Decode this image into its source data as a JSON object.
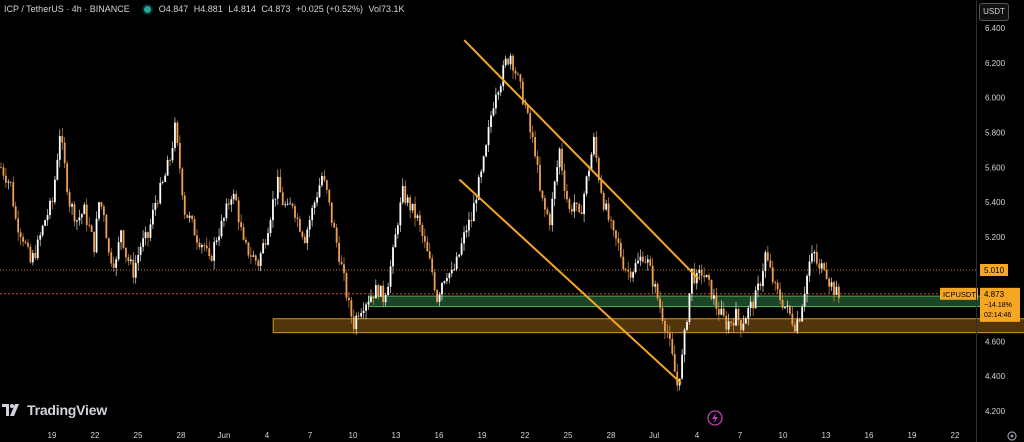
{
  "header": {
    "symbol": "ICP / TetherUS · 4h · BINANCE",
    "o_label": "O",
    "o": "4.847",
    "h_label": "H",
    "h": "4.881",
    "l_label": "L",
    "l": "4.814",
    "c_label": "C",
    "c": "4.873",
    "change": "+0.025 (+0.52%)",
    "vol_label": "Vol",
    "vol": "73.1K"
  },
  "currency": "USDT",
  "logo_text": "TradingView",
  "colors": {
    "background": "#000000",
    "candle_up": "#ffffff",
    "candle_down": "#f0a050",
    "trendline": "#f5a623",
    "support_zone": "#1e4d2b",
    "support_zone_border": "#4caf50",
    "demand_zone": "#5c3b0c",
    "demand_zone_border": "#d4952a",
    "price_line": "#f5a623"
  },
  "chart_data": {
    "type": "candlestick",
    "title": "ICP / TetherUS · 4h · BINANCE",
    "ylim": [
      4.1,
      6.5
    ],
    "y_ticks": [
      "6.400",
      "6.200",
      "6.000",
      "5.800",
      "5.600",
      "5.400",
      "5.200",
      "5.000",
      "4.800",
      "4.600",
      "4.400",
      "4.200"
    ],
    "x_ticks": [
      "19",
      "22",
      "25",
      "28",
      "Jun",
      "4",
      "7",
      "10",
      "13",
      "16",
      "19",
      "22",
      "25",
      "28",
      "Jul",
      "4",
      "7",
      "10",
      "13",
      "16",
      "19",
      "22"
    ],
    "price_labels": [
      {
        "label": "5.010",
        "value": 5.01
      },
      {
        "label": "ICPUSDT",
        "value": 4.873,
        "price": "4.873",
        "change": "−14.18%",
        "countdown": "02:14:46"
      }
    ],
    "series": [
      {
        "path": [
          [
            0,
            5.6
          ],
          [
            4,
            5.5
          ],
          [
            6,
            5.3
          ],
          [
            9,
            5.2
          ],
          [
            12,
            5.05
          ],
          [
            15,
            5.15
          ],
          [
            18,
            5.3
          ],
          [
            21,
            5.4
          ],
          [
            24,
            5.8
          ],
          [
            26,
            5.6
          ],
          [
            28,
            5.4
          ],
          [
            31,
            5.3
          ],
          [
            34,
            5.35
          ],
          [
            36,
            5.25
          ],
          [
            38,
            5.15
          ],
          [
            40,
            5.4
          ],
          [
            42,
            5.35
          ],
          [
            44,
            5.1
          ],
          [
            47,
            5.05
          ],
          [
            49,
            5.25
          ],
          [
            51,
            5.1
          ],
          [
            54,
            5.0
          ],
          [
            57,
            5.15
          ],
          [
            60,
            5.2
          ],
          [
            63,
            5.4
          ],
          [
            66,
            5.5
          ],
          [
            69,
            5.65
          ],
          [
            71,
            5.82
          ],
          [
            73,
            5.6
          ],
          [
            75,
            5.35
          ],
          [
            77,
            5.3
          ],
          [
            80,
            5.2
          ],
          [
            83,
            5.15
          ],
          [
            85,
            5.05
          ],
          [
            88,
            5.2
          ],
          [
            91,
            5.3
          ],
          [
            94,
            5.45
          ],
          [
            96,
            5.4
          ],
          [
            99,
            5.15
          ],
          [
            102,
            5.1
          ],
          [
            105,
            5.05
          ],
          [
            108,
            5.2
          ],
          [
            111,
            5.4
          ],
          [
            113,
            5.5
          ],
          [
            115,
            5.4
          ],
          [
            117,
            5.35
          ],
          [
            119,
            5.4
          ],
          [
            121,
            5.3
          ],
          [
            124,
            5.2
          ],
          [
            127,
            5.35
          ],
          [
            129,
            5.45
          ],
          [
            131,
            5.55
          ],
          [
            133,
            5.45
          ],
          [
            135,
            5.3
          ],
          [
            138,
            5.1
          ],
          [
            140,
            4.95
          ],
          [
            142,
            4.8
          ],
          [
            144,
            4.7
          ],
          [
            146,
            4.78
          ],
          [
            148,
            4.82
          ],
          [
            150,
            4.85
          ],
          [
            152,
            4.88
          ],
          [
            154,
            4.9
          ],
          [
            156,
            4.85
          ],
          [
            158,
            4.95
          ],
          [
            160,
            5.1
          ],
          [
            162,
            5.3
          ],
          [
            164,
            5.45
          ],
          [
            166,
            5.4
          ],
          [
            168,
            5.35
          ],
          [
            170,
            5.3
          ],
          [
            172,
            5.2
          ],
          [
            174,
            5.1
          ],
          [
            176,
            5.0
          ],
          [
            178,
            4.85
          ],
          [
            180,
            4.95
          ],
          [
            182,
            5.0
          ],
          [
            184,
            4.98
          ],
          [
            186,
            5.05
          ],
          [
            188,
            5.15
          ],
          [
            190,
            5.25
          ],
          [
            192,
            5.3
          ],
          [
            194,
            5.45
          ],
          [
            196,
            5.55
          ],
          [
            198,
            5.7
          ],
          [
            200,
            5.9
          ],
          [
            202,
            6.05
          ],
          [
            204,
            6.1
          ],
          [
            206,
            6.2
          ],
          [
            208,
            6.25
          ],
          [
            210,
            6.15
          ],
          [
            212,
            6.05
          ],
          [
            214,
            5.95
          ],
          [
            216,
            5.8
          ],
          [
            218,
            5.7
          ],
          [
            220,
            5.45
          ],
          [
            222,
            5.35
          ],
          [
            224,
            5.3
          ],
          [
            226,
            5.5
          ],
          [
            228,
            5.7
          ],
          [
            230,
            5.5
          ],
          [
            232,
            5.35
          ],
          [
            234,
            5.4
          ],
          [
            236,
            5.3
          ],
          [
            238,
            5.45
          ],
          [
            240,
            5.6
          ],
          [
            242,
            5.75
          ],
          [
            244,
            5.55
          ],
          [
            246,
            5.4
          ],
          [
            248,
            5.3
          ],
          [
            250,
            5.2
          ],
          [
            252,
            5.15
          ],
          [
            254,
            5.05
          ],
          [
            256,
            5.0
          ],
          [
            258,
            5.02
          ],
          [
            260,
            5.05
          ],
          [
            262,
            5.1
          ],
          [
            264,
            5.05
          ],
          [
            266,
            4.95
          ],
          [
            268,
            4.85
          ],
          [
            270,
            4.75
          ],
          [
            272,
            4.65
          ],
          [
            274,
            4.5
          ],
          [
            276,
            4.35
          ],
          [
            278,
            4.5
          ],
          [
            280,
            4.75
          ],
          [
            282,
            5.0
          ],
          [
            284,
            4.95
          ],
          [
            286,
            5.0
          ],
          [
            288,
            4.95
          ],
          [
            290,
            4.88
          ],
          [
            292,
            4.8
          ],
          [
            294,
            4.75
          ],
          [
            296,
            4.7
          ],
          [
            298,
            4.72
          ],
          [
            300,
            4.75
          ],
          [
            302,
            4.7
          ],
          [
            304,
            4.75
          ],
          [
            306,
            4.8
          ],
          [
            308,
            4.85
          ],
          [
            310,
            4.95
          ],
          [
            312,
            5.1
          ],
          [
            314,
            5.0
          ],
          [
            316,
            4.9
          ],
          [
            318,
            4.85
          ],
          [
            320,
            4.8
          ],
          [
            322,
            4.75
          ],
          [
            324,
            4.7
          ],
          [
            326,
            4.75
          ],
          [
            328,
            4.9
          ],
          [
            330,
            5.05
          ],
          [
            332,
            5.1
          ],
          [
            334,
            5.0
          ],
          [
            336,
            5.05
          ],
          [
            338,
            4.95
          ],
          [
            340,
            4.9
          ],
          [
            342,
            4.85
          ],
          [
            343,
            4.873
          ]
        ]
      }
    ],
    "drawings": {
      "trendlines": [
        {
          "from": [
            189.5,
            6.33
          ],
          "to": [
            285,
            4.96
          ]
        },
        {
          "from": [
            187.5,
            5.53
          ],
          "to": [
            278,
            4.36
          ]
        }
      ],
      "zones": [
        {
          "name": "support",
          "from_x": 150.5,
          "to_x": 408.5,
          "y_top": 4.86,
          "y_bottom": 4.8
        },
        {
          "name": "demand",
          "from_x": 111.5,
          "to_x": 421.5,
          "y_top": 4.73,
          "y_bottom": 4.65
        }
      ],
      "hlines": [
        5.01,
        4.873
      ]
    }
  }
}
